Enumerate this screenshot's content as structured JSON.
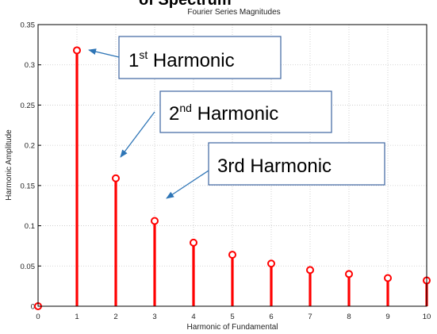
{
  "heading_fragment": "of Spectrum",
  "chart_data": {
    "type": "stem",
    "title": "Fourier Series Magnitudes",
    "xlabel": "Harmonic of Fundamental",
    "ylabel": "Harmonic Amplitude",
    "xlim": [
      0,
      10
    ],
    "ylim": [
      0,
      0.35
    ],
    "x_ticks": [
      "0",
      "1",
      "2",
      "3",
      "4",
      "5",
      "6",
      "7",
      "8",
      "9",
      "10"
    ],
    "y_ticks": [
      "0",
      "0.05",
      "0.1",
      "0.15",
      "0.2",
      "0.25",
      "0.3",
      "0.35"
    ],
    "grid": true,
    "series": [
      {
        "color": "#ff0000",
        "x": [
          0,
          1,
          2,
          3,
          4,
          5,
          6,
          7,
          8,
          9,
          10
        ],
        "values": [
          0,
          0.318,
          0.159,
          0.106,
          0.079,
          0.064,
          0.053,
          0.045,
          0.04,
          0.035,
          0.032
        ]
      }
    ],
    "annotations": [
      {
        "main": "1",
        "sup": "st",
        "rest": " Harmonic",
        "target_x": 1,
        "target_y": 0.318
      },
      {
        "main": "2",
        "sup": "nd",
        "rest": "  Harmonic",
        "target_x": 2,
        "target_y": 0.159
      },
      {
        "main": "3rd  Harmonic",
        "sup": "",
        "rest": "",
        "target_x": 3,
        "target_y": 0.106
      }
    ]
  }
}
